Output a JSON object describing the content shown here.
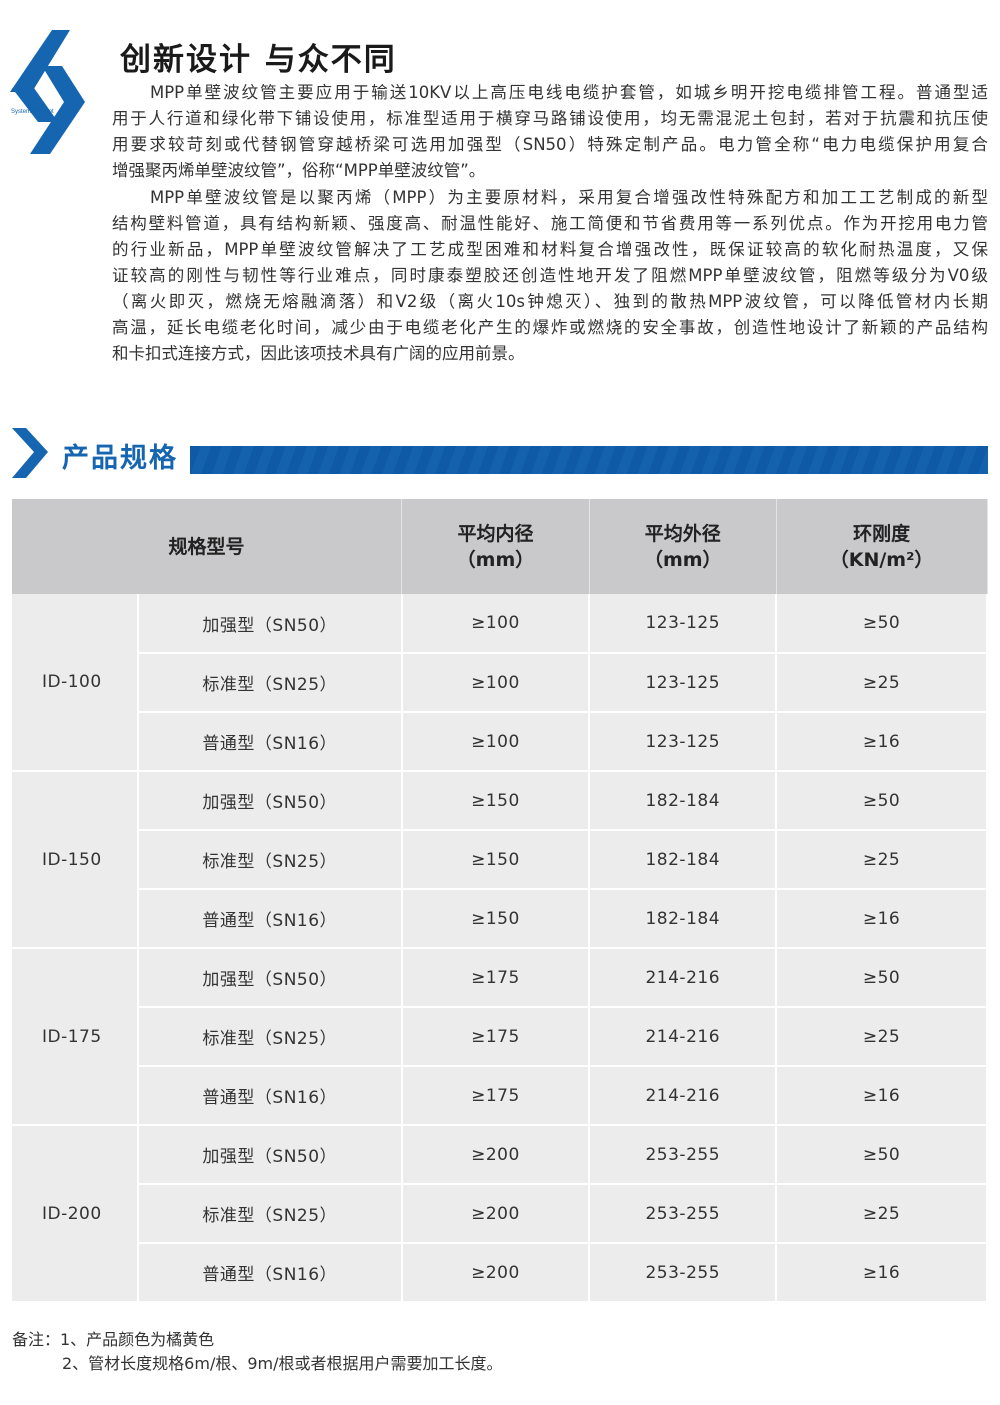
{
  "logo": {
    "text": "System concept",
    "color": "#1565b0"
  },
  "title": "创新设计  与众不同",
  "intro": {
    "paragraph1": [
      "MPP单壁波纹管主要应用于输送10KV以上高压电线电缆护套管，如城乡明开挖电缆排管工程。普通型适",
      "用于人行道和绿化带下铺设使用，标准型适用于横穿马路铺设使用，均无需混泥土包封，若对于抗震和抗压使",
      "用要求较苛刻或代替钢管穿越桥梁可选用加强型（SN50）特殊定制产品。电力管全称“电力电缆保护用复合",
      "增强聚丙烯单壁波纹管”，俗称“MPP单壁波纹管”。"
    ],
    "paragraph2": [
      "MPP单壁波纹管是以聚丙烯（MPP）为主要原材料，采用复合增强改性特殊配方和加工工艺制成的新型",
      "结构壁料管道，具有结构新颖、强度高、耐温性能好、施工简便和节省费用等一系列优点。作为开挖用电力管",
      "的行业新品，MPP单壁波纹管解决了工艺成型困难和材料复合增强改性，既保证较高的软化耐热温度，又保",
      "证较高的刚性与韧性等行业难点，同时康泰塑胶还创造性地开发了阻燃MPP单壁波纹管，阻燃等级分为V0级",
      "（离火即灭，燃烧无熔融滴落）和V2级（离火10s钟熄灭）、独到的散热MPP波纹管，可以降低管材内长期",
      "高温，延长电缆老化时间，减少由于电缆老化产生的爆炸或燃烧的安全事故，创造性地设计了新颖的产品结构",
      "和卡扣式连接方式，因此该项技术具有广阔的应用前景。"
    ]
  },
  "section": {
    "title": "产品规格",
    "color": "#1565b0"
  },
  "table": {
    "headers": {
      "spec": "规格型号",
      "inner_1": "平均内径",
      "inner_2": "（mm）",
      "outer_1": "平均外径",
      "outer_2": "（mm）",
      "stiff_1": "环刚度",
      "stiff_2": "（KN/m²）"
    },
    "groups": [
      {
        "id": "ID-100",
        "rows": [
          [
            "加强型（SN50）",
            "≥100",
            "123-125",
            "≥50"
          ],
          [
            "标准型（SN25）",
            "≥100",
            "123-125",
            "≥25"
          ],
          [
            "普通型（SN16）",
            "≥100",
            "123-125",
            "≥16"
          ]
        ]
      },
      {
        "id": "ID-150",
        "rows": [
          [
            "加强型（SN50）",
            "≥150",
            "182-184",
            "≥50"
          ],
          [
            "标准型（SN25）",
            "≥150",
            "182-184",
            "≥25"
          ],
          [
            "普通型（SN16）",
            "≥150",
            "182-184",
            "≥16"
          ]
        ]
      },
      {
        "id": "ID-175",
        "rows": [
          [
            "加强型（SN50）",
            "≥175",
            "214-216",
            "≥50"
          ],
          [
            "标准型（SN25）",
            "≥175",
            "214-216",
            "≥25"
          ],
          [
            "普通型（SN16）",
            "≥175",
            "214-216",
            "≥16"
          ]
        ]
      },
      {
        "id": "ID-200",
        "rows": [
          [
            "加强型（SN50）",
            "≥200",
            "253-255",
            "≥50"
          ],
          [
            "标准型（SN25）",
            "≥200",
            "253-255",
            "≥25"
          ],
          [
            "普通型（SN16）",
            "≥200",
            "253-255",
            "≥16"
          ]
        ]
      }
    ]
  },
  "notes": [
    "备注：1、产品颜色为橘黄色",
    "2、管材长度规格6m/根、9m/根或者根据用户需要加工长度。"
  ]
}
